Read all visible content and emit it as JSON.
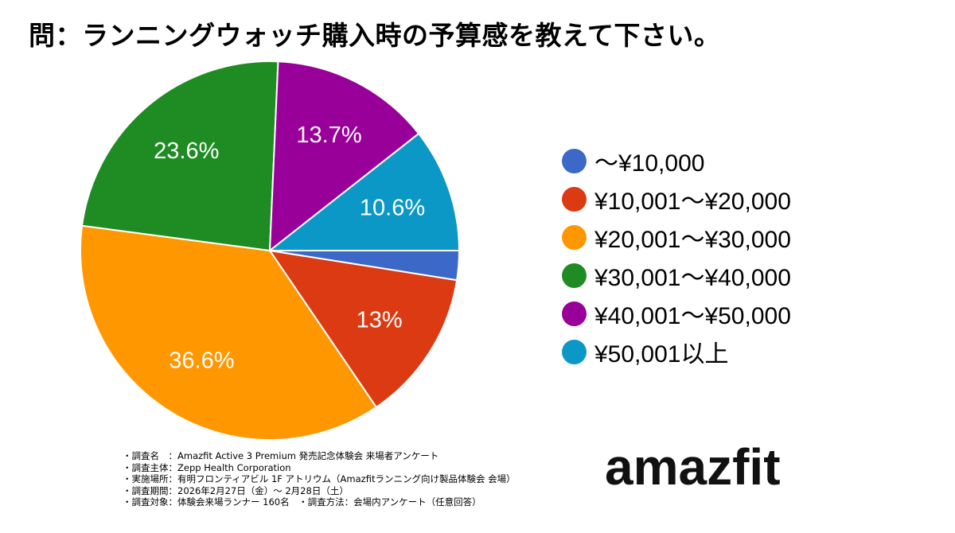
{
  "chart_data": {
    "type": "pie",
    "title": "問：ランニングウォッチ購入時の予算感を教えて下さい。",
    "slices": [
      {
        "name": "〜¥10,000",
        "value": 2.5,
        "label": "",
        "color": "#3c68c8"
      },
      {
        "name": "¥10,001〜¥20,000",
        "value": 13,
        "label": "13%",
        "color": "#dc3a12"
      },
      {
        "name": "¥20,001〜¥30,000",
        "value": 36.6,
        "label": "36.6%",
        "color": "#ff9700"
      },
      {
        "name": "¥30,001〜¥40,000",
        "value": 23.6,
        "label": "23.6%",
        "color": "#1f8c23"
      },
      {
        "name": "¥40,001〜¥50,000",
        "value": 13.7,
        "label": "13.7%",
        "color": "#990099"
      },
      {
        "name": "¥50,001以上",
        "value": 10.6,
        "label": "10.6%",
        "color": "#0b98c6"
      }
    ],
    "legend_position": "right"
  },
  "footnote": [
    "・調査名　：Amazfit Active 3 Premium 発売記念体験会 来場者アンケート",
    "・調査主体：Zepp Health Corporation",
    "・実施場所：有明フロンティアビル 1F アトリウム（Amazfitランニング向け製品体験会 会場）",
    "・調査期間：2026年2月27日（金）〜 2月28日（土）",
    "・調査対象：体験会来場ランナー 160名　・調査方法：会場内アンケート（任意回答）"
  ],
  "brand": "amazfit"
}
